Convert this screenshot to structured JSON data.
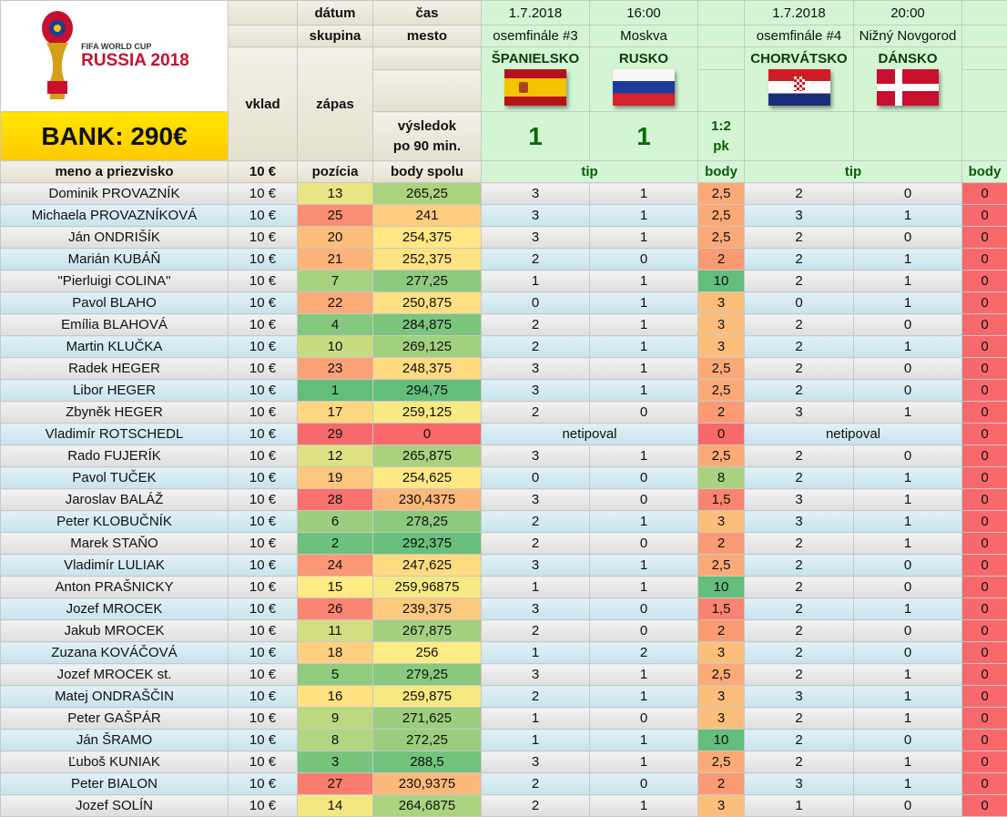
{
  "logo": {
    "line1": "FIFA WORLD CUP",
    "line2": "RUSSIA 2018"
  },
  "bank": "BANK: 290€",
  "header": {
    "datum": "dátum",
    "cas": "čas",
    "skupina": "skupina",
    "mesto": "mesto",
    "vklad": "vklad",
    "zapas": "zápas",
    "vysledok1": "výsledok",
    "vysledok2": "po 90 min.",
    "meno": "meno a priezvisko",
    "vklad_amount": "10 €",
    "pozicia": "pozícia",
    "body_spolu": "body spolu",
    "tip": "tip",
    "body": "body"
  },
  "matches": [
    {
      "date": "1.7.2018",
      "time": "16:00",
      "stage": "osemfinále #3",
      "city": "Moskva",
      "home": "ŠPANIELSKO",
      "away": "RUSKO",
      "home_score": "1",
      "away_score": "1",
      "note1": "1:2",
      "note2": "pk"
    },
    {
      "date": "1.7.2018",
      "time": "20:00",
      "stage": "osemfinále #4",
      "city": "Nižný Novgorod",
      "home": "CHORVÁTSKO",
      "away": "DÁNSKO",
      "home_score": "",
      "away_score": "",
      "note1": "",
      "note2": ""
    }
  ],
  "no_tip": "netipoval",
  "rows": [
    [
      "Dominik PROVAZNÍK",
      "10 €",
      "13",
      "265,25",
      "3",
      "1",
      "2,5",
      "2",
      "0",
      "0"
    ],
    [
      "Michaela PROVAZNÍKOVÁ",
      "10 €",
      "25",
      "241",
      "3",
      "1",
      "2,5",
      "3",
      "1",
      "0"
    ],
    [
      "Ján ONDRIŠÍK",
      "10 €",
      "20",
      "254,375",
      "3",
      "1",
      "2,5",
      "2",
      "0",
      "0"
    ],
    [
      "Marián KUBÁŇ",
      "10 €",
      "21",
      "252,375",
      "2",
      "0",
      "2",
      "2",
      "1",
      "0"
    ],
    [
      "\"Pierluigi COLINA\"",
      "10 €",
      "7",
      "277,25",
      "1",
      "1",
      "10",
      "2",
      "1",
      "0"
    ],
    [
      "Pavol BLAHO",
      "10 €",
      "22",
      "250,875",
      "0",
      "1",
      "3",
      "0",
      "1",
      "0"
    ],
    [
      "Emília BLAHOVÁ",
      "10 €",
      "4",
      "284,875",
      "2",
      "1",
      "3",
      "2",
      "0",
      "0"
    ],
    [
      "Martin KLUČKA",
      "10 €",
      "10",
      "269,125",
      "2",
      "1",
      "3",
      "2",
      "1",
      "0"
    ],
    [
      "Radek HEGER",
      "10 €",
      "23",
      "248,375",
      "3",
      "1",
      "2,5",
      "2",
      "0",
      "0"
    ],
    [
      "Libor HEGER",
      "10 €",
      "1",
      "294,75",
      "3",
      "1",
      "2,5",
      "2",
      "0",
      "0"
    ],
    [
      "Zbyněk HEGER",
      "10 €",
      "17",
      "259,125",
      "2",
      "0",
      "2",
      "3",
      "1",
      "0"
    ],
    [
      "Vladimír ROTSCHEDL",
      "10 €",
      "29",
      "0",
      "",
      "",
      "0",
      "",
      "",
      "0"
    ],
    [
      "Rado FUJERÍK",
      "10 €",
      "12",
      "265,875",
      "3",
      "1",
      "2,5",
      "2",
      "0",
      "0"
    ],
    [
      "Pavol TUČEK",
      "10 €",
      "19",
      "254,625",
      "0",
      "0",
      "8",
      "2",
      "1",
      "0"
    ],
    [
      "Jaroslav BALÁŽ",
      "10 €",
      "28",
      "230,4375",
      "3",
      "0",
      "1,5",
      "3",
      "1",
      "0"
    ],
    [
      "Peter KLOBUČNÍK",
      "10 €",
      "6",
      "278,25",
      "2",
      "1",
      "3",
      "3",
      "1",
      "0"
    ],
    [
      "Marek STAŇO",
      "10 €",
      "2",
      "292,375",
      "2",
      "0",
      "2",
      "2",
      "1",
      "0"
    ],
    [
      "Vladimír LULIAK",
      "10 €",
      "24",
      "247,625",
      "3",
      "1",
      "2,5",
      "2",
      "0",
      "0"
    ],
    [
      "Anton PRAŠNICKY",
      "10 €",
      "15",
      "259,96875",
      "1",
      "1",
      "10",
      "2",
      "0",
      "0"
    ],
    [
      "Jozef MROCEK",
      "10 €",
      "26",
      "239,375",
      "3",
      "0",
      "1,5",
      "2",
      "1",
      "0"
    ],
    [
      "Jakub MROCEK",
      "10 €",
      "11",
      "267,875",
      "2",
      "0",
      "2",
      "2",
      "0",
      "0"
    ],
    [
      "Zuzana KOVÁČOVÁ",
      "10 €",
      "18",
      "256",
      "1",
      "2",
      "3",
      "2",
      "0",
      "0"
    ],
    [
      "Jozef MROCEK st.",
      "10 €",
      "5",
      "279,25",
      "3",
      "1",
      "2,5",
      "2",
      "1",
      "0"
    ],
    [
      "Matej ONDRAŠČIN",
      "10 €",
      "16",
      "259,875",
      "2",
      "1",
      "3",
      "3",
      "1",
      "0"
    ],
    [
      "Peter GAŠPÁR",
      "10 €",
      "9",
      "271,625",
      "1",
      "0",
      "3",
      "2",
      "1",
      "0"
    ],
    [
      "Ján ŠRAMO",
      "10 €",
      "8",
      "272,25",
      "1",
      "1",
      "10",
      "2",
      "0",
      "0"
    ],
    [
      "Ľuboš KUNIAK",
      "10 €",
      "3",
      "288,5",
      "3",
      "1",
      "2,5",
      "2",
      "1",
      "0"
    ],
    [
      "Peter BIALON",
      "10 €",
      "27",
      "230,9375",
      "2",
      "0",
      "2",
      "3",
      "1",
      "0"
    ],
    [
      "Jozef SOLÍN",
      "10 €",
      "14",
      "264,6875",
      "2",
      "1",
      "3",
      "1",
      "0",
      "0"
    ]
  ],
  "colors": {
    "good": "#63be7b",
    "mid": "#ffeb84",
    "bad": "#f8696b"
  }
}
